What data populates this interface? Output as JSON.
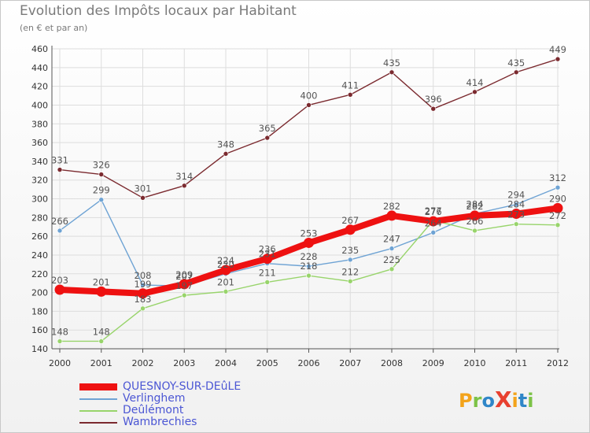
{
  "title": "Evolution des Impôts locaux par Habitant",
  "subtitle": "(en € et par an)",
  "logo": {
    "text": "ProXiti",
    "colors": [
      "#f3a31b",
      "#7cc247",
      "#2f86c8",
      "#e8402f",
      "#f3a31b",
      "#2f86c8",
      "#7cc247"
    ]
  },
  "chart_data": {
    "type": "line",
    "x": [
      "2000",
      "2001",
      "2002",
      "2003",
      "2004",
      "2005",
      "2006",
      "2007",
      "2008",
      "2009",
      "2010",
      "2011",
      "2012"
    ],
    "ylim": [
      140,
      460
    ],
    "yticks": [
      140,
      160,
      180,
      200,
      220,
      240,
      260,
      280,
      300,
      320,
      340,
      360,
      380,
      400,
      420,
      440,
      460
    ],
    "grid": true,
    "legend_position": "bottom-left",
    "series": [
      {
        "name": "Wambrechies",
        "color": "#7b2a2f",
        "values": [
          331,
          326,
          301,
          314,
          348,
          365,
          400,
          411,
          435,
          396,
          414,
          435,
          449
        ],
        "labels": [
          "331",
          "326",
          "301",
          "314",
          "348",
          "365",
          "400",
          "411",
          "435",
          "396",
          "414",
          "435",
          "449"
        ]
      },
      {
        "name": "Verlinghem",
        "color": "#6ea3d4",
        "values": [
          266,
          299,
          208,
          207,
          220,
          231,
          228,
          235,
          247,
          264,
          284,
          294,
          312
        ],
        "labels": [
          "266",
          "299",
          "208",
          "207",
          "220",
          "231",
          "228",
          "235",
          "247",
          "264",
          "284",
          "294",
          "312"
        ]
      },
      {
        "name": "Deûlémont",
        "color": "#98d46b",
        "values": [
          148,
          148,
          183,
          197,
          201,
          211,
          218,
          212,
          225,
          277,
          266,
          273,
          272
        ],
        "labels": [
          "148",
          "148",
          "183",
          "197",
          "201",
          "211",
          "218",
          "212",
          "225",
          "277",
          "266",
          "273",
          "272"
        ]
      },
      {
        "name": "QUESNOY-SUR-DEûLE",
        "color": "#ee1111",
        "values": [
          203,
          201,
          199,
          209,
          224,
          236,
          253,
          267,
          282,
          276,
          282,
          284,
          290
        ],
        "labels": [
          "203",
          "201",
          "199",
          "209",
          "224",
          "236",
          "253",
          "267",
          "282",
          "276",
          "282",
          "284",
          "290"
        ]
      }
    ]
  },
  "legend": [
    {
      "name": "QUESNOY-SUR-DEûLE",
      "color": "#ee1111",
      "thick": true
    },
    {
      "name": "Verlinghem",
      "color": "#6ea3d4",
      "thick": false
    },
    {
      "name": "Deûlémont",
      "color": "#98d46b",
      "thick": false
    },
    {
      "name": "Wambrechies",
      "color": "#7b2a2f",
      "thick": false
    }
  ]
}
